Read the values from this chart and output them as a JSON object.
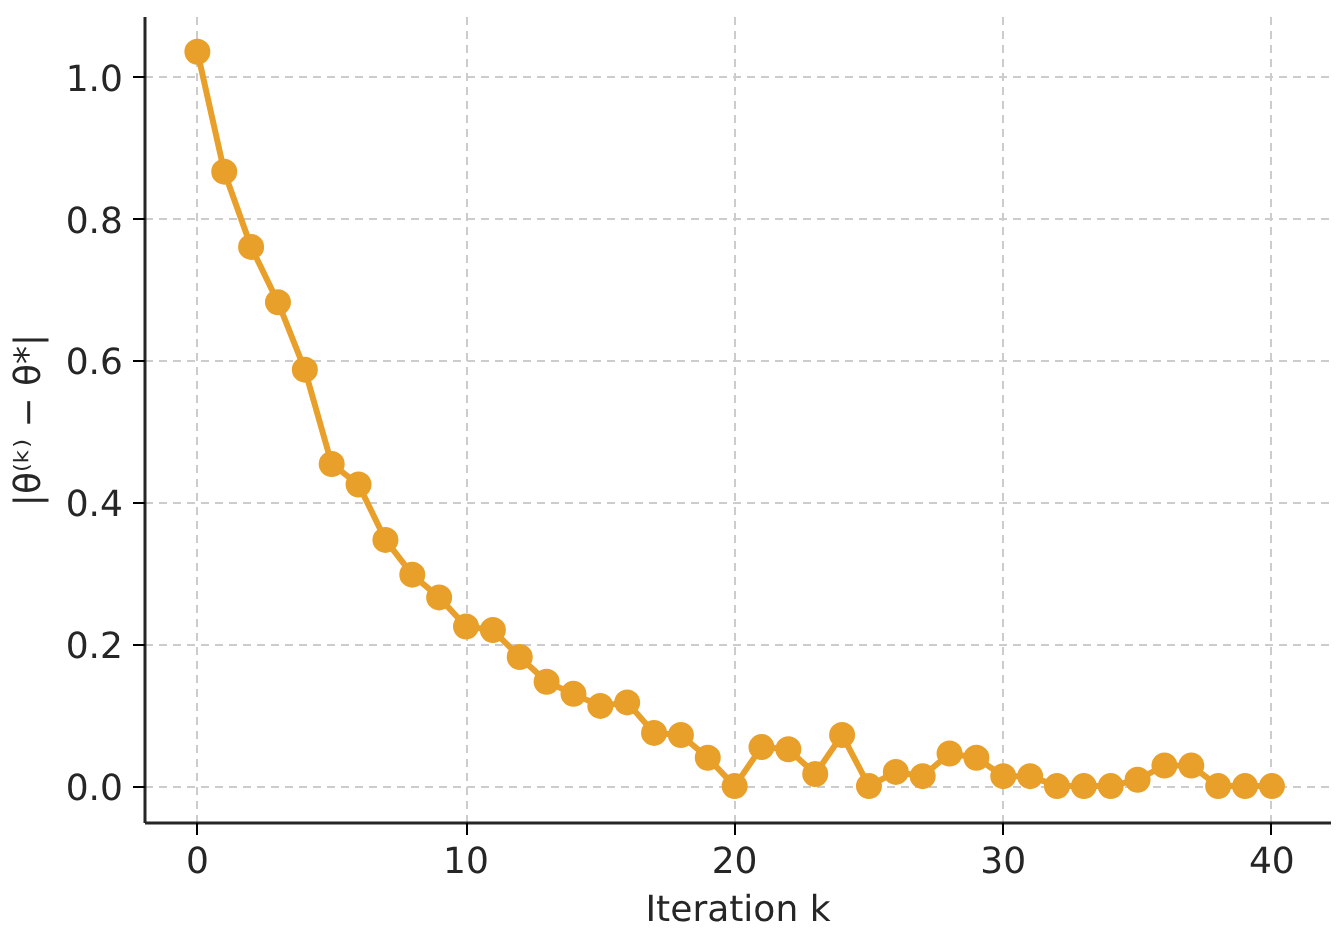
{
  "chart_data": {
    "type": "line",
    "xlabel": "Iteration k",
    "ylabel": "|θ⁽ᵏ⁾ − θ*|",
    "x": [
      0,
      1,
      2,
      3,
      4,
      5,
      6,
      7,
      8,
      9,
      10,
      11,
      12,
      13,
      14,
      15,
      16,
      17,
      18,
      19,
      20,
      21,
      22,
      23,
      24,
      25,
      26,
      27,
      28,
      29,
      30,
      31,
      32,
      33,
      34,
      35,
      36,
      37,
      38,
      39,
      40
    ],
    "series": [
      {
        "color": "#e8a02a",
        "values": [
          1.035,
          0.866,
          0.76,
          0.682,
          0.587,
          0.454,
          0.425,
          0.347,
          0.298,
          0.266,
          0.225,
          0.22,
          0.182,
          0.147,
          0.13,
          0.113,
          0.118,
          0.075,
          0.072,
          0.04,
          0.0,
          0.055,
          0.052,
          0.017,
          0.072,
          0.0,
          0.02,
          0.014,
          0.046,
          0.04,
          0.014,
          0.014,
          0.0,
          0.0,
          0.0,
          0.009,
          0.029,
          0.029,
          0.0,
          0.0,
          0.0
        ]
      }
    ],
    "xlim": [
      -1.95,
      42.2
    ],
    "ylim": [
      -0.052,
      1.084
    ],
    "xticks": [
      0,
      10,
      20,
      30,
      40
    ],
    "yticks": [
      {
        "value": 0,
        "label": "0.0"
      },
      {
        "value": 0.2,
        "label": "0.2"
      },
      {
        "value": 0.4,
        "label": "0.4"
      },
      {
        "value": 0.6,
        "label": "0.6"
      },
      {
        "value": 0.8,
        "label": "0.8"
      },
      {
        "value": 1.0,
        "label": "1.0"
      }
    ],
    "grid": true,
    "marker": "circle",
    "line_style": "solid"
  }
}
